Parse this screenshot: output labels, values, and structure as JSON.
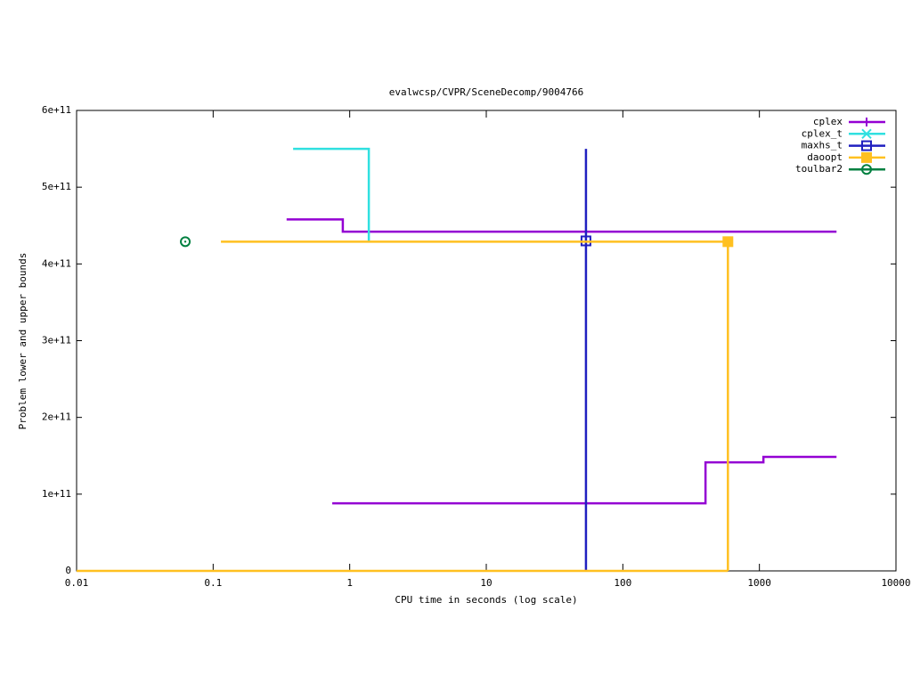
{
  "chart_data": {
    "type": "step",
    "title": "evalwcsp/CVPR/SceneDecomp/9004766",
    "x_label": "CPU time in seconds (log scale)",
    "y_label": "Problem lower and upper bounds",
    "xscale": "log",
    "xlim": [
      0.01,
      10000
    ],
    "ylim": [
      0,
      600000000000
    ],
    "xticks": [
      0.01,
      0.1,
      1,
      10,
      100,
      1000,
      10000
    ],
    "yticks": [
      {
        "value": 0,
        "label": "0"
      },
      {
        "value": 100000000000,
        "label": "1e+11"
      },
      {
        "value": 200000000000,
        "label": "2e+11"
      },
      {
        "value": 300000000000,
        "label": "3e+11"
      },
      {
        "value": 400000000000,
        "label": "4e+11"
      },
      {
        "value": 500000000000,
        "label": "5e+11"
      },
      {
        "value": 600000000000,
        "label": "6e+11"
      }
    ],
    "legend": "top-right",
    "series": [
      {
        "name": "cplex",
        "color": "#9400d3",
        "marker": "plus",
        "x": [
          0.345,
          0.89,
          3670,
          null,
          0.745,
          403,
          1070,
          3670
        ],
        "values": [
          458000000000,
          442000000000,
          442000000000,
          null,
          88000000000,
          141500000000,
          148500000000,
          148500000000
        ]
      },
      {
        "name": "cplex_t",
        "color": "#30e0e0",
        "marker": "cross",
        "x": [
          0.385,
          1.38,
          1.38
        ],
        "values": [
          550000000000,
          430000000000,
          430000000000
        ]
      },
      {
        "name": "maxhs_t",
        "color": "#2020c0",
        "marker": "open-square",
        "x": [
          53.7,
          53.7
        ],
        "values": [
          550000000000,
          0
        ],
        "points": {
          "x": [
            53.7
          ],
          "values": [
            430000000000
          ]
        }
      },
      {
        "name": "daoopt",
        "color": "#ffc020",
        "marker": "filled-square",
        "x": [
          0.114,
          588,
          588,
          null,
          0.01,
          588
        ],
        "values": [
          429000000000,
          429000000000,
          0,
          null,
          0,
          0
        ],
        "points": {
          "x": [
            588
          ],
          "values": [
            429000000000
          ]
        }
      },
      {
        "name": "toulbar2",
        "color": "#008040",
        "marker": "circle",
        "x": [],
        "values": [],
        "points": {
          "x": [
            0.0625
          ],
          "values": [
            429000000000
          ]
        }
      }
    ]
  }
}
